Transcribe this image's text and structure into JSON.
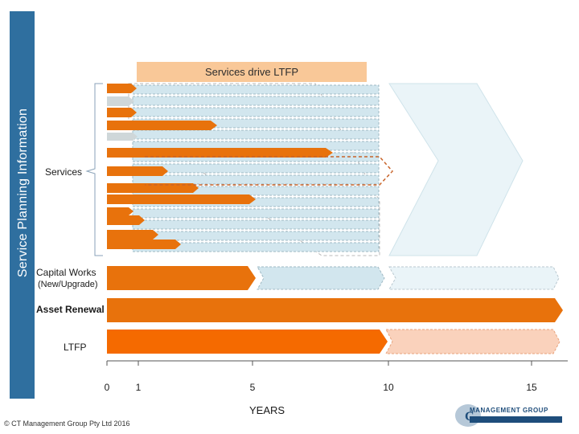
{
  "side_label": "Service Planning Information",
  "header": "Services drive LTFP",
  "labels": {
    "services": "Services",
    "capital_works": "Capital Works",
    "capital_works_sub": "(New/Upgrade)",
    "asset_renewal": "Asset Renewal",
    "ltfp": "LTFP"
  },
  "axis": {
    "title": "YEARS",
    "ticks": [
      {
        "label": "0",
        "value": 0
      },
      {
        "label": "1",
        "value": 1
      },
      {
        "label": "5",
        "value": 5
      },
      {
        "label": "10",
        "value": 10
      },
      {
        "label": "15",
        "value": 15
      }
    ]
  },
  "footer": {
    "copyright": "© CT Management Group Pty Ltd 2016"
  },
  "logo": {
    "brand": "MANAGEMENT GROUP"
  },
  "colors": {
    "side_bar": "#2f6f9f",
    "header_fill": "#f9c898",
    "orange": "#e8720c",
    "orange_bright": "#f56a00",
    "light_blue": "#d2e6ee",
    "peach": "#fad2bc"
  }
}
